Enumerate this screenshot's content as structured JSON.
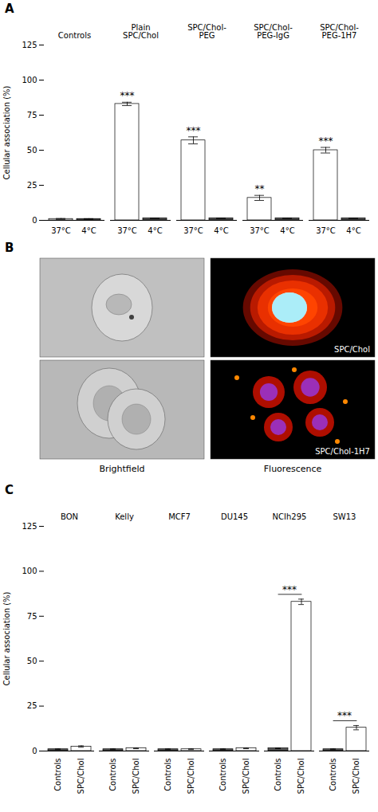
{
  "chart_data": [
    {
      "type": "bar",
      "title": "A",
      "categories": [
        "Controls",
        "Plain\nSPC/Chol",
        "SPC/Chol-\nPEG",
        "SPC/Chol-\nPEG-IgG",
        "SPC/Chol-\nPEG-1H7"
      ],
      "series": [
        {
          "name": "37°C",
          "color": "white",
          "values": [
            1.0,
            83.0,
            57.0,
            16.0,
            50.0
          ],
          "errors": [
            0.3,
            1.2,
            2.5,
            1.8,
            2.0
          ]
        },
        {
          "name": "4°C",
          "color": "#555555",
          "values": [
            1.0,
            1.5,
            1.5,
            1.5,
            1.5
          ],
          "errors": [
            0.2,
            0.2,
            0.2,
            0.2,
            0.2
          ]
        }
      ],
      "ylabel": "Cellular association (%)",
      "ylim": [
        0,
        125
      ],
      "yticks": [
        0,
        25,
        50,
        75,
        100,
        125
      ],
      "annotations": [
        {
          "text": "***",
          "category": "Plain\nSPC/Chol",
          "series": "37°C"
        },
        {
          "text": "***",
          "category": "SPC/Chol-\nPEG",
          "series": "37°C"
        },
        {
          "text": "**",
          "category": "SPC/Chol-\nPEG-IgG",
          "series": "37°C"
        },
        {
          "text": "***",
          "category": "SPC/Chol-\nPEG-1H7",
          "series": "37°C"
        }
      ]
    },
    {
      "type": "image",
      "title": "B",
      "categories": [
        "Brightfield",
        "Fluorescence"
      ],
      "annotations": [
        "SPC/Chol",
        "SPC/Chol-1H7"
      ]
    },
    {
      "type": "bar",
      "title": "C",
      "categories": [
        "BON",
        "Kelly",
        "MCF7",
        "DU145",
        "NCIh295",
        "SW13"
      ],
      "series": [
        {
          "name": "Controls",
          "color": "#555555",
          "values": [
            1.0,
            1.0,
            1.0,
            1.0,
            1.5,
            1.0
          ],
          "errors": [
            0.2,
            0.2,
            0.2,
            0.2,
            0.2,
            0.2
          ]
        },
        {
          "name": "SPC/Chol",
          "color": "white",
          "values": [
            2.5,
            1.5,
            1.0,
            1.5,
            83.0,
            13.0
          ],
          "errors": [
            0.4,
            0.2,
            0.2,
            0.2,
            1.5,
            1.2
          ]
        }
      ],
      "ylabel": "Cellular association (%)",
      "ylim": [
        0,
        125
      ],
      "yticks": [
        0,
        25,
        50,
        75,
        100,
        125
      ],
      "annotations": [
        {
          "text": "***",
          "category": "NCIh295"
        },
        {
          "text": "***",
          "category": "SW13"
        }
      ]
    }
  ]
}
